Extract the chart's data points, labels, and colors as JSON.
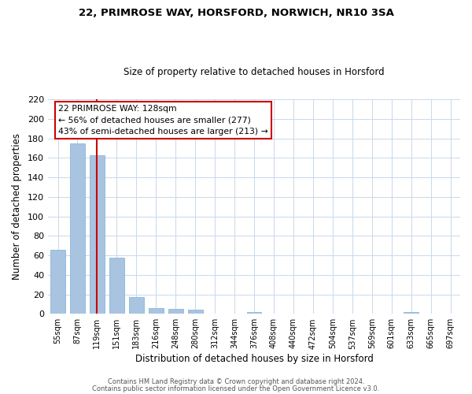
{
  "title1": "22, PRIMROSE WAY, HORSFORD, NORWICH, NR10 3SA",
  "title2": "Size of property relative to detached houses in Horsford",
  "xlabel": "Distribution of detached houses by size in Horsford",
  "ylabel": "Number of detached properties",
  "bar_labels": [
    "55sqm",
    "87sqm",
    "119sqm",
    "151sqm",
    "183sqm",
    "216sqm",
    "248sqm",
    "280sqm",
    "312sqm",
    "344sqm",
    "376sqm",
    "408sqm",
    "440sqm",
    "472sqm",
    "504sqm",
    "537sqm",
    "569sqm",
    "601sqm",
    "633sqm",
    "665sqm",
    "697sqm"
  ],
  "bar_heights": [
    66,
    175,
    163,
    58,
    17,
    6,
    5,
    4,
    0,
    0,
    2,
    0,
    0,
    0,
    0,
    0,
    0,
    0,
    2,
    0,
    0
  ],
  "bar_color": "#a8c4e0",
  "bar_edge_color": "#7bafd4",
  "vline_color": "#cc0000",
  "vline_x_index": 2,
  "ylim": [
    0,
    220
  ],
  "yticks": [
    0,
    20,
    40,
    60,
    80,
    100,
    120,
    140,
    160,
    180,
    200,
    220
  ],
  "annotation_title": "22 PRIMROSE WAY: 128sqm",
  "annotation_line1": "← 56% of detached houses are smaller (277)",
  "annotation_line2": "43% of semi-detached houses are larger (213) →",
  "footer1": "Contains HM Land Registry data © Crown copyright and database right 2024.",
  "footer2": "Contains public sector information licensed under the Open Government Licence v3.0.",
  "background_color": "#ffffff",
  "grid_color": "#c8d8ec"
}
